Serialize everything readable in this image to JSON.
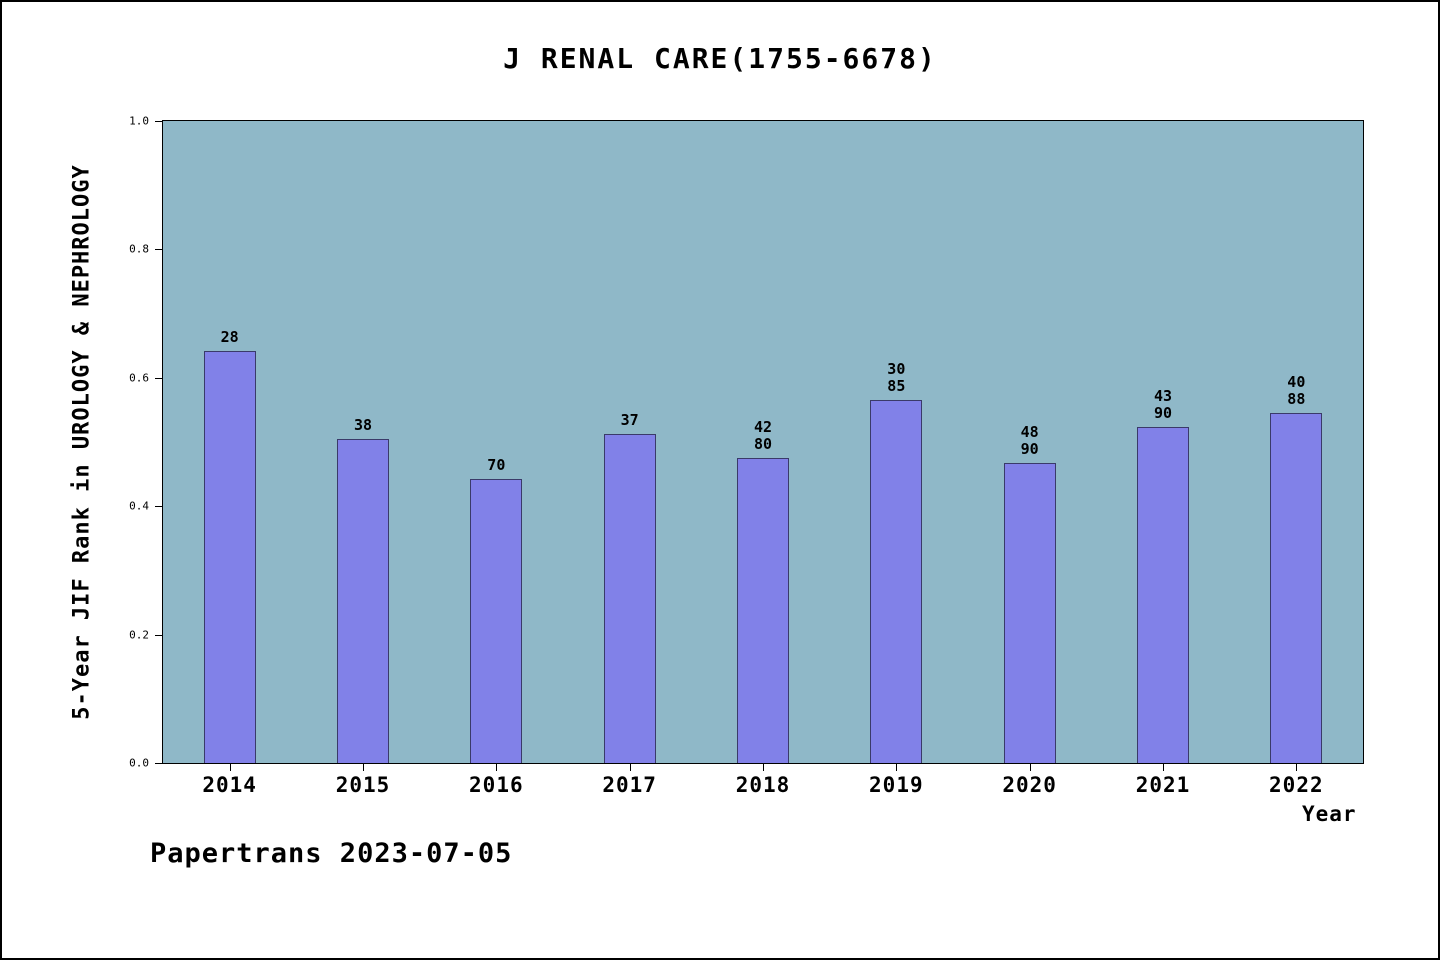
{
  "title": "J RENAL CARE(1755-6678)",
  "footer": "Papertrans 2023-07-05",
  "chart_data": {
    "type": "bar",
    "title": "J RENAL CARE(1755-6678)",
    "xlabel": "Year",
    "ylabel": "5-Year JIF Rank in UROLOGY & NEPHROLOGY",
    "categories": [
      "2014",
      "2015",
      "2016",
      "2017",
      "2018",
      "2019",
      "2020",
      "2021",
      "2022"
    ],
    "values": [
      0.642,
      0.505,
      0.442,
      0.512,
      0.475,
      0.565,
      0.467,
      0.523,
      0.545
    ],
    "bar_labels": [
      "28",
      "38",
      "70",
      "37",
      "42\n80",
      "30\n85",
      "48\n90",
      "43\n90",
      "40\n88"
    ],
    "ylim": [
      0.0,
      1.0
    ],
    "yticks": [
      "0.0",
      "0.2",
      "0.4",
      "0.6",
      "0.8",
      "1.0"
    ],
    "grid": false,
    "legend": null,
    "colors": {
      "bar_fill": "#8181e8",
      "plot_bg": "#8fb8c8",
      "text": "#000000"
    }
  }
}
